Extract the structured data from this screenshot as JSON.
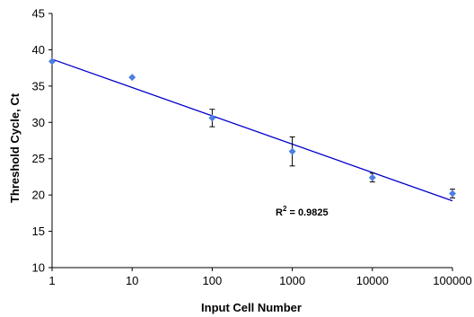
{
  "chart_data": {
    "type": "scatter",
    "title": "",
    "xlabel": "Input Cell Number",
    "ylabel": "Threshold Cycle, Ct",
    "x_scale": "log",
    "xlim": [
      1,
      100000
    ],
    "ylim": [
      10,
      45
    ],
    "x_ticks": [
      "1",
      "10",
      "100",
      "1000",
      "10000",
      "100000"
    ],
    "y_ticks": [
      "10",
      "15",
      "20",
      "25",
      "30",
      "35",
      "40",
      "45"
    ],
    "grid": false,
    "legend": "none",
    "marker_color": "#4d7fe0",
    "line_color": "#0000cc",
    "series": [
      {
        "x": [
          1,
          10,
          100,
          1000,
          10000,
          100000
        ],
        "y": [
          38.4,
          36.2,
          30.6,
          26.0,
          22.4,
          20.2
        ],
        "error": [
          0,
          0,
          1.2,
          2.0,
          0.6,
          0.6
        ]
      }
    ],
    "trendline": {
      "x": [
        1,
        100000
      ],
      "y": [
        38.7,
        19.2
      ]
    },
    "annotation": {
      "base": "R",
      "sup": "2",
      "rest": " = 0.9825"
    }
  }
}
